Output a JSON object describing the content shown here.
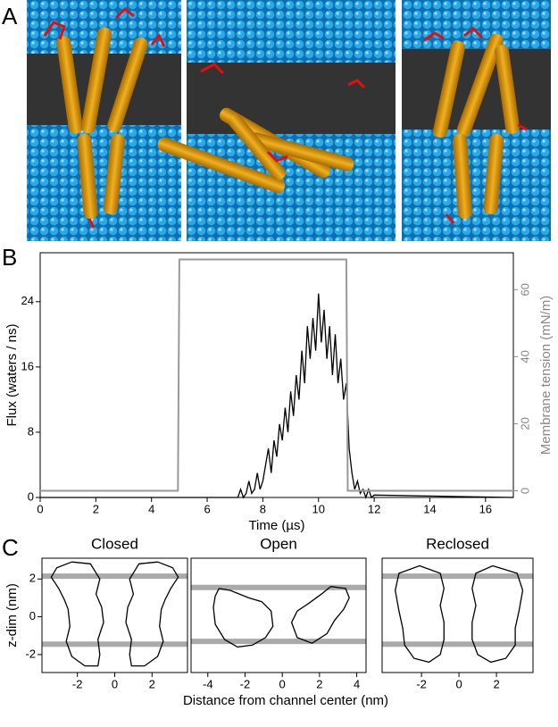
{
  "panel_labels": [
    "A",
    "B",
    "C"
  ],
  "chart_data": [
    {
      "type": "line",
      "xlabel": "Time (µs)",
      "ylabel": "Flux (waters / ns)",
      "y2label": "Membrane tension (mN/m)",
      "xlim": [
        0,
        17
      ],
      "xticks": [
        0,
        2,
        4,
        6,
        8,
        10,
        12,
        14,
        16
      ],
      "ylim": [
        0,
        30
      ],
      "yticks": [
        0,
        8,
        16,
        24
      ],
      "y2lim": [
        -2,
        71
      ],
      "y2ticks": [
        0,
        20,
        40,
        60
      ],
      "series": [
        {
          "color": "#000000",
          "axis": "y",
          "x": [
            0,
            7.0,
            7.1,
            7.2,
            7.3,
            7.4,
            7.5,
            7.6,
            7.7,
            7.8,
            7.9,
            8.0,
            8.1,
            8.2,
            8.3,
            8.4,
            8.5,
            8.6,
            8.7,
            8.8,
            8.9,
            9.0,
            9.1,
            9.2,
            9.3,
            9.4,
            9.5,
            9.6,
            9.7,
            9.8,
            9.9,
            10.0,
            10.1,
            10.2,
            10.3,
            10.4,
            10.5,
            10.6,
            10.7,
            10.8,
            10.9,
            11.0,
            11.1,
            11.2,
            11.3,
            11.4,
            11.5,
            11.6,
            11.7,
            11.8,
            11.9,
            12.0,
            17
          ],
          "values": [
            0,
            0,
            0,
            1,
            0,
            0.5,
            2,
            0.5,
            1,
            3,
            1,
            2,
            4,
            6,
            3,
            7,
            5,
            9,
            7,
            11,
            8,
            13,
            10,
            15,
            12,
            18,
            14,
            21,
            17,
            22,
            18,
            25,
            19,
            23,
            17,
            21,
            15,
            20,
            14,
            17,
            12,
            14,
            6,
            3,
            1,
            2,
            0.5,
            1,
            0,
            1,
            0,
            0.3,
            0
          ]
        },
        {
          "color": "#999999",
          "axis": "y2",
          "x": [
            0,
            4.95,
            5.0,
            11.0,
            11.05,
            17
          ],
          "values": [
            0,
            0,
            69,
            69,
            0,
            0
          ]
        }
      ]
    },
    {
      "type": "line",
      "title": "Closed",
      "ylabel": "z-dim (nm)",
      "xlim": [
        -3.9,
        3.9
      ],
      "xticks": [
        -2,
        0,
        2
      ],
      "ylim": [
        -2.95,
        3.1
      ],
      "yticks": [
        -2,
        0,
        2
      ],
      "membrane": [
        2.15,
        -1.45
      ],
      "series": [
        {
          "color": "#000000",
          "x": [
            -2.3,
            -1.3,
            -0.8,
            -1.0,
            -0.7,
            -0.6,
            -0.9,
            -0.8,
            -0.9,
            -1.6,
            -2.3,
            -2.6,
            -2.4,
            -2.5,
            -2.7,
            -3.0,
            -3.4,
            -3.1,
            -2.3
          ],
          "values": [
            2.9,
            2.8,
            2.0,
            1.2,
            0.5,
            -0.3,
            -1.2,
            -2.0,
            -2.6,
            -2.6,
            -2.1,
            -1.3,
            -0.5,
            0.4,
            0.9,
            1.5,
            2.1,
            2.6,
            2.9
          ]
        },
        {
          "color": "#000000",
          "x": [
            2.3,
            1.3,
            0.8,
            1.0,
            0.7,
            0.6,
            0.9,
            0.8,
            0.9,
            1.6,
            2.3,
            2.6,
            2.4,
            2.5,
            2.7,
            3.0,
            3.4,
            3.1,
            2.3
          ],
          "values": [
            2.9,
            2.8,
            2.0,
            1.2,
            0.5,
            -0.3,
            -1.2,
            -2.0,
            -2.6,
            -2.6,
            -2.1,
            -1.3,
            -0.5,
            0.4,
            0.9,
            1.5,
            2.1,
            2.6,
            2.9
          ]
        }
      ]
    },
    {
      "type": "line",
      "title": "Open",
      "xlabel": "Distance from channel center (nm)",
      "xlim": [
        -4.9,
        4.5
      ],
      "xticks": [
        -4,
        -2,
        0,
        2,
        4
      ],
      "ylim": [
        -2.95,
        3.1
      ],
      "membrane": [
        1.55,
        -1.3
      ],
      "series": [
        {
          "color": "#000000",
          "x": [
            -3.4,
            -2.8,
            -1.8,
            -1.1,
            -0.6,
            -0.5,
            -0.9,
            -1.6,
            -2.4,
            -3.1,
            -3.6,
            -3.7,
            -3.6,
            -3.4
          ],
          "values": [
            1.5,
            1.4,
            1.0,
            0.8,
            0.3,
            -0.5,
            -1.1,
            -1.5,
            -1.6,
            -1.2,
            -0.4,
            0.5,
            1.1,
            1.5
          ]
        },
        {
          "color": "#000000",
          "x": [
            2.6,
            3.4,
            3.6,
            3.3,
            2.8,
            2.4,
            1.6,
            0.8,
            0.5,
            0.8,
            1.4,
            2.1,
            2.6
          ],
          "values": [
            1.6,
            1.5,
            1.0,
            0.4,
            -0.2,
            -0.9,
            -1.4,
            -1.1,
            -0.3,
            0.3,
            0.7,
            1.2,
            1.6
          ]
        }
      ]
    },
    {
      "type": "line",
      "title": "Reclosed",
      "xlim": [
        -4.1,
        3.95
      ],
      "xticks": [
        -2,
        0,
        2
      ],
      "ylim": [
        -2.95,
        3.1
      ],
      "membrane": [
        2.15,
        -1.45
      ],
      "series": [
        {
          "color": "#000000",
          "x": [
            -2.1,
            -1.0,
            -0.8,
            -1.0,
            -0.8,
            -0.8,
            -1.0,
            -1.6,
            -2.4,
            -2.9,
            -3.0,
            -3.2,
            -3.4,
            -3.2,
            -2.1
          ],
          "values": [
            2.7,
            2.3,
            1.5,
            0.6,
            -0.3,
            -1.2,
            -2.0,
            -2.4,
            -2.2,
            -1.5,
            -0.6,
            0.3,
            1.4,
            2.3,
            2.7
          ]
        },
        {
          "color": "#000000",
          "x": [
            1.8,
            0.9,
            0.7,
            0.9,
            0.7,
            0.7,
            1.0,
            1.7,
            2.5,
            3.0,
            3.0,
            3.2,
            3.4,
            3.1,
            1.8
          ],
          "values": [
            2.7,
            2.3,
            1.5,
            0.6,
            -0.3,
            -1.2,
            -2.0,
            -2.4,
            -2.2,
            -1.5,
            -0.6,
            0.3,
            1.4,
            2.3,
            2.7
          ]
        }
      ]
    }
  ]
}
